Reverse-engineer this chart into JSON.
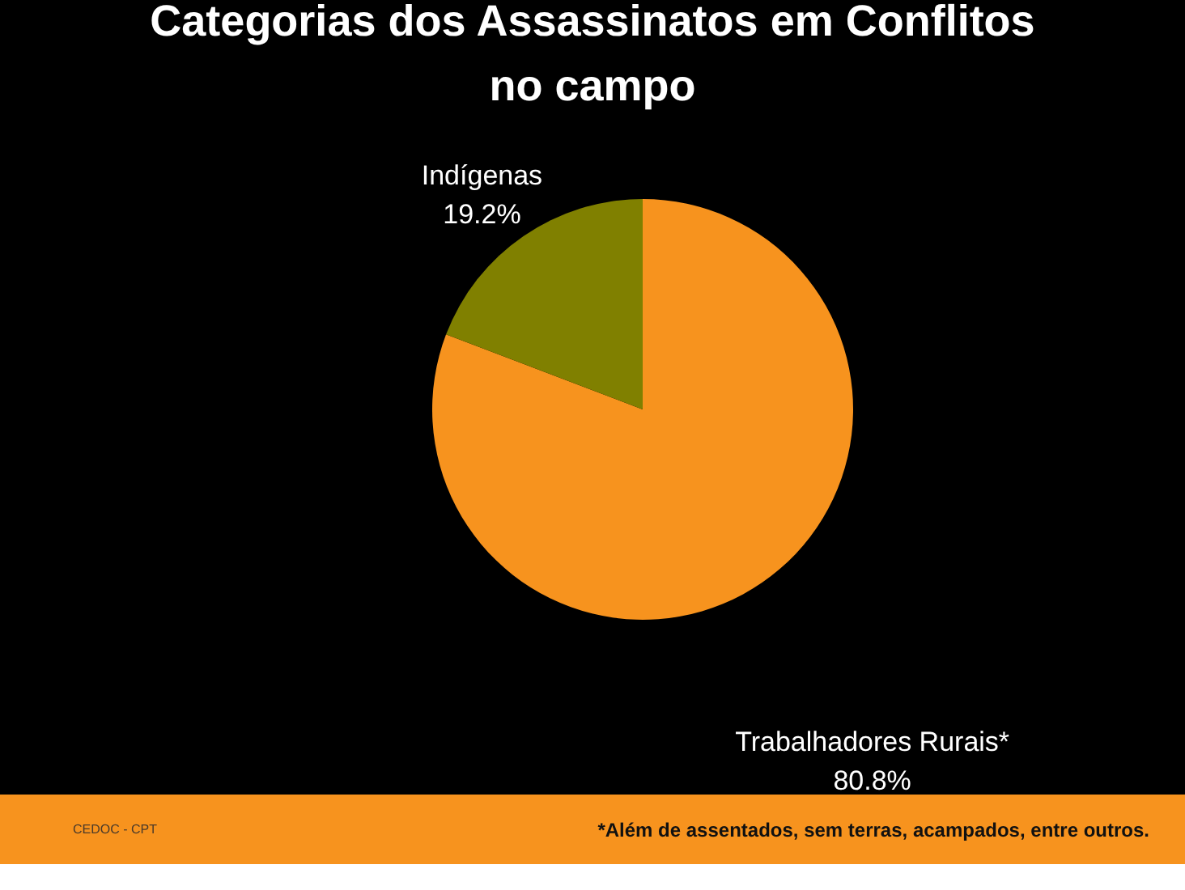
{
  "chart_data": {
    "type": "pie",
    "title": "Categorias dos Assassinatos em Conflitos no campo",
    "categories": [
      "Trabalhadores Rurais*",
      "Indígenas"
    ],
    "values": [
      80.8,
      19.2
    ],
    "colors": [
      "#f7931e",
      "#808000"
    ],
    "value_labels": [
      "80.8%",
      "19.2%"
    ],
    "annotations": [
      "CEDOC - CPT",
      "*Além de assentados, sem terras, acampados, entre outros."
    ],
    "legend": false
  }
}
